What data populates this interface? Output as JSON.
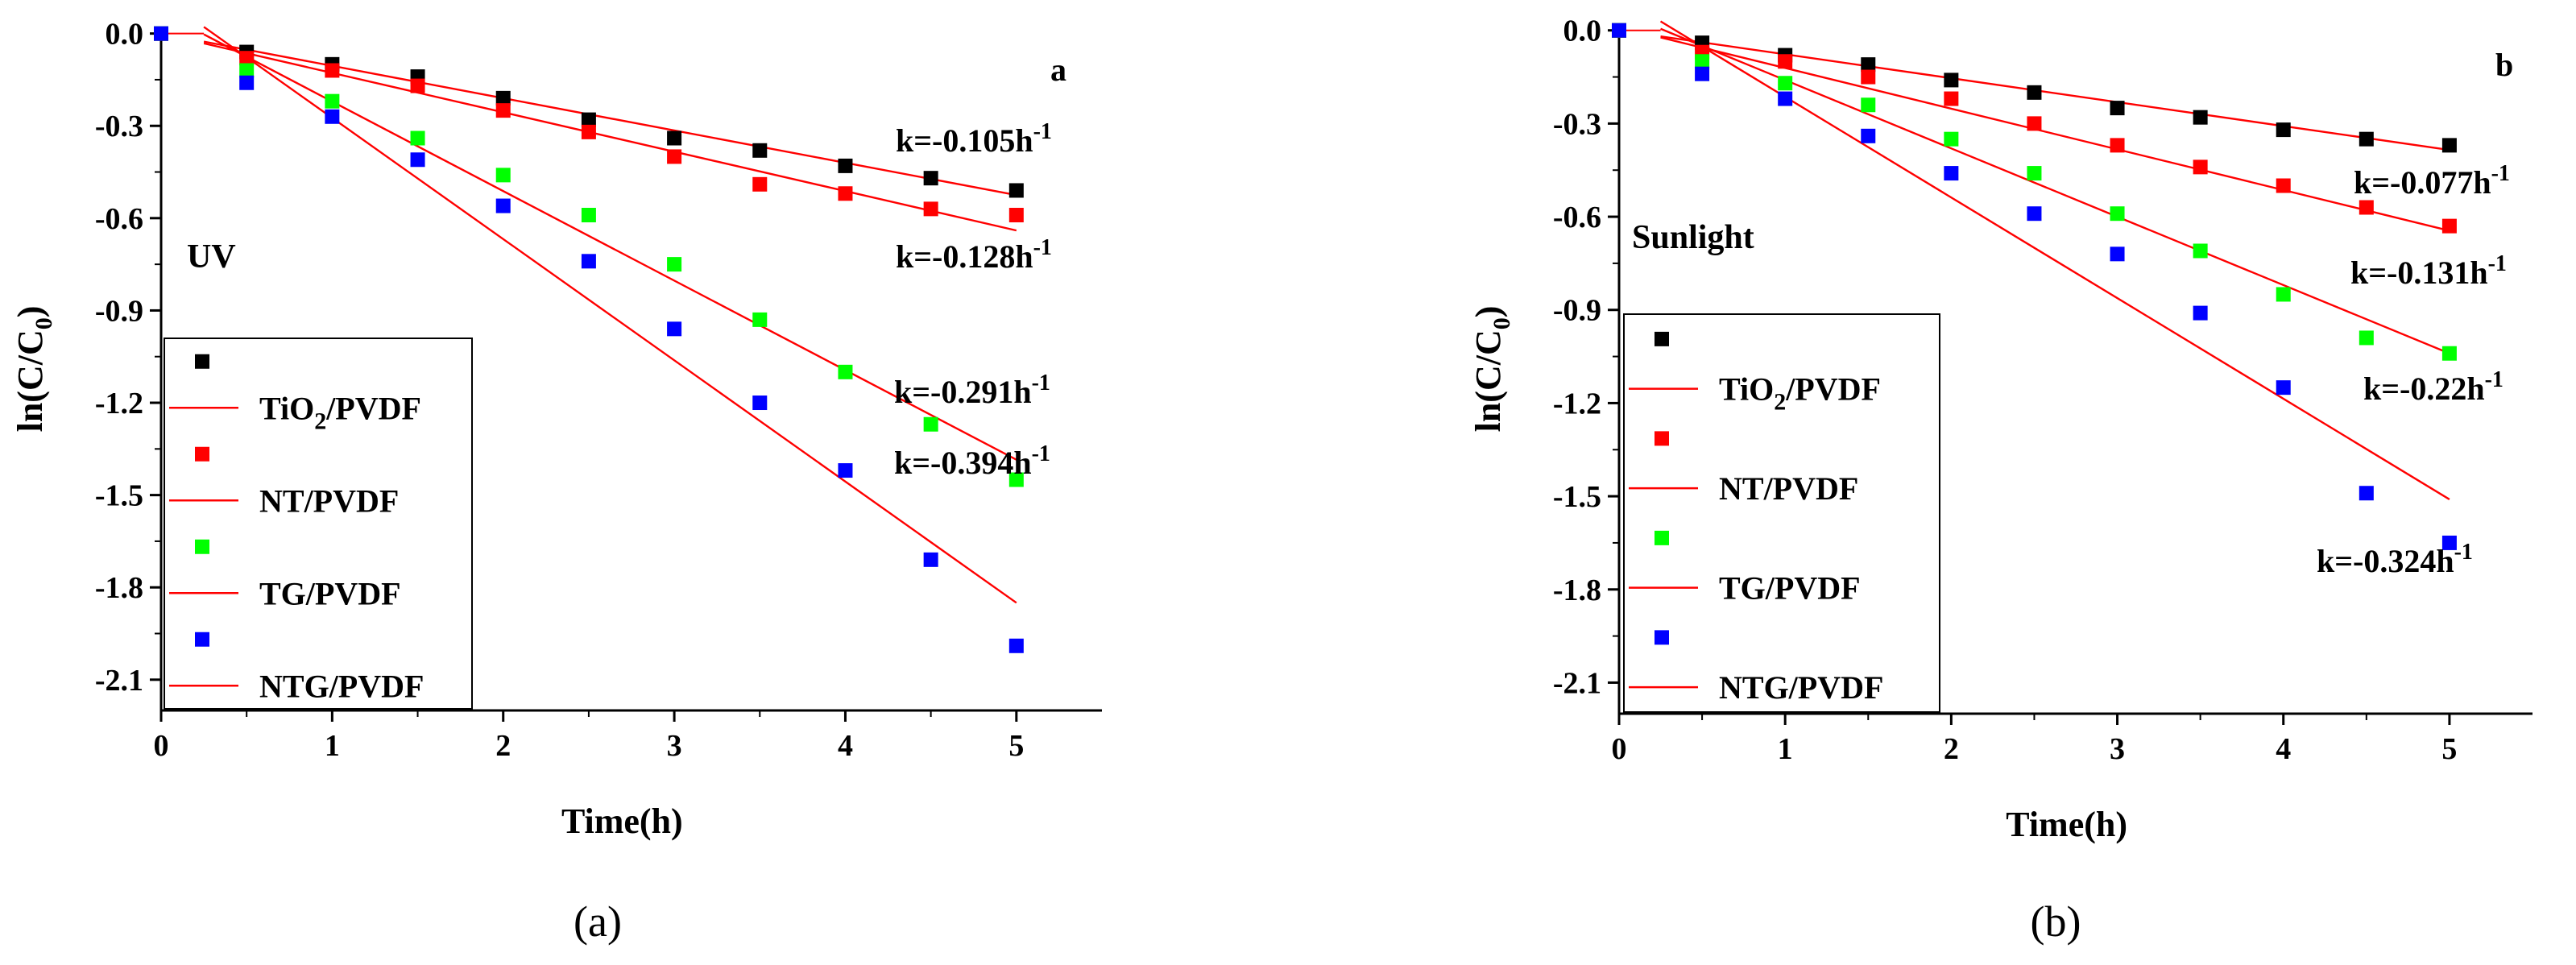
{
  "chart_data": [
    {
      "type": "scatter",
      "panel": "a",
      "caption": "(a)",
      "condition_label": "UV",
      "xlabel": "Time(h)",
      "ylabel": "ln(C/C0)",
      "xlim": [
        0,
        5.5
      ],
      "ylim": [
        -2.2,
        0.02
      ],
      "x_ticks": [
        0,
        1,
        2,
        3,
        4,
        5
      ],
      "y_ticks": [
        0.0,
        -0.3,
        -0.6,
        -0.9,
        -1.2,
        -1.5,
        -1.8,
        -2.1
      ],
      "x_tick_labels": [
        "0",
        "1",
        "2",
        "3",
        "4",
        "5"
      ],
      "y_tick_labels": [
        "0.0",
        "-0.3",
        "-0.6",
        "-0.9",
        "-1.2",
        "-1.5",
        "-1.8",
        "-2.1"
      ],
      "legend_position": "bottom-left",
      "x": [
        0,
        0.5,
        1,
        1.5,
        2,
        2.5,
        3,
        3.5,
        4,
        4.5,
        5
      ],
      "series": [
        {
          "name": "TiO2/PVDF",
          "color": "#000000",
          "values": [
            0,
            -0.06,
            -0.1,
            -0.14,
            -0.21,
            -0.28,
            -0.34,
            -0.38,
            -0.43,
            -0.47,
            -0.51
          ],
          "fit": {
            "slope": -0.105,
            "intercept": 0.0,
            "x_start": 0.25,
            "x_end": 5
          }
        },
        {
          "name": "NT/PVDF",
          "color": "#ff0000",
          "values": [
            0,
            -0.08,
            -0.12,
            -0.17,
            -0.25,
            -0.32,
            -0.4,
            -0.49,
            -0.52,
            -0.57,
            -0.59
          ],
          "fit": {
            "slope": -0.128,
            "intercept": 0.0,
            "x_start": 0.25,
            "x_end": 5
          }
        },
        {
          "name": "TG/PVDF",
          "color": "#00ff00",
          "values": [
            0,
            -0.12,
            -0.22,
            -0.34,
            -0.46,
            -0.59,
            -0.75,
            -0.93,
            -1.1,
            -1.27,
            -1.45
          ],
          "fit": {
            "slope": -0.291,
            "intercept": 0.07,
            "x_start": 0.25,
            "x_end": 5
          }
        },
        {
          "name": "NTG/PVDF",
          "color": "#0000ff",
          "values": [
            0,
            -0.16,
            -0.27,
            -0.41,
            -0.56,
            -0.74,
            -0.96,
            -1.2,
            -1.42,
            -1.71,
            -1.99
          ],
          "fit": {
            "slope": -0.394,
            "intercept": 0.12,
            "x_start": 0.25,
            "x_end": 5
          }
        }
      ],
      "legend": [
        {
          "base": "TiO",
          "sub": "2",
          "rest": "/PVDF"
        },
        {
          "base": "NT/PVDF",
          "sub": "",
          "rest": ""
        },
        {
          "base": "TG/PVDF",
          "sub": "",
          "rest": ""
        },
        {
          "base": "NTG/PVDF",
          "sub": "",
          "rest": ""
        }
      ],
      "annotations": [
        {
          "text": "k=-0.105h",
          "sup": "-1",
          "near_series": 0
        },
        {
          "text": "k=-0.128h",
          "sup": "-1",
          "near_series": 1
        },
        {
          "text": "k=-0.291h",
          "sup": "-1",
          "near_series": 2
        },
        {
          "text": "k=-0.394h",
          "sup": "-1",
          "near_series": 3
        }
      ]
    },
    {
      "type": "scatter",
      "panel": "b",
      "caption": "(b)",
      "condition_label": "Sunlight",
      "xlabel": "Time(h)",
      "ylabel": "ln(C/C0)",
      "xlim": [
        0,
        5.5
      ],
      "ylim": [
        -2.2,
        0.02
      ],
      "x_ticks": [
        0,
        1,
        2,
        3,
        4,
        5
      ],
      "y_ticks": [
        0.0,
        -0.3,
        -0.6,
        -0.9,
        -1.2,
        -1.5,
        -1.8,
        -2.1
      ],
      "x_tick_labels": [
        "0",
        "1",
        "2",
        "3",
        "4",
        "5"
      ],
      "y_tick_labels": [
        "0.0",
        "-0.3",
        "-0.6",
        "-0.9",
        "-1.2",
        "-1.5",
        "-1.8",
        "-2.1"
      ],
      "legend_position": "bottom-left",
      "x": [
        0,
        0.5,
        1,
        1.5,
        2,
        2.5,
        3,
        3.5,
        4,
        4.5,
        5
      ],
      "series": [
        {
          "name": "TiO2/PVDF",
          "color": "#000000",
          "values": [
            0,
            -0.04,
            -0.08,
            -0.11,
            -0.16,
            -0.2,
            -0.25,
            -0.28,
            -0.32,
            -0.35,
            -0.37
          ],
          "fit": {
            "slope": -0.077,
            "intercept": 0.0,
            "x_start": 0.25,
            "x_end": 5
          }
        },
        {
          "name": "NT/PVDF",
          "color": "#ff0000",
          "values": [
            0,
            -0.07,
            -0.1,
            -0.15,
            -0.22,
            -0.3,
            -0.37,
            -0.44,
            -0.5,
            -0.57,
            -0.63
          ],
          "fit": {
            "slope": -0.131,
            "intercept": 0.01,
            "x_start": 0.25,
            "x_end": 5
          }
        },
        {
          "name": "TG/PVDF",
          "color": "#00ff00",
          "values": [
            0,
            -0.1,
            -0.17,
            -0.24,
            -0.35,
            -0.46,
            -0.59,
            -0.71,
            -0.85,
            -0.99,
            -1.04
          ],
          "fit": {
            "slope": -0.22,
            "intercept": 0.06,
            "x_start": 0.25,
            "x_end": 5
          }
        },
        {
          "name": "NTG/PVDF",
          "color": "#0000ff",
          "values": [
            0,
            -0.14,
            -0.22,
            -0.34,
            -0.46,
            -0.59,
            -0.72,
            -0.91,
            -1.15,
            -1.49,
            -1.65
          ],
          "fit": {
            "slope": -0.324,
            "intercept": 0.11,
            "x_start": 0.25,
            "x_end": 5
          }
        }
      ],
      "legend": [
        {
          "base": "TiO",
          "sub": "2",
          "rest": "/PVDF"
        },
        {
          "base": "NT/PVDF",
          "sub": "",
          "rest": ""
        },
        {
          "base": "TG/PVDF",
          "sub": "",
          "rest": ""
        },
        {
          "base": "NTG/PVDF",
          "sub": "",
          "rest": ""
        }
      ],
      "annotations": [
        {
          "text": "k=-0.077h",
          "sup": "-1",
          "near_series": 0
        },
        {
          "text": "k=-0.131h",
          "sup": "-1",
          "near_series": 1
        },
        {
          "text": "k=-0.22h",
          "sup": "-1",
          "near_series": 2
        },
        {
          "text": "k=-0.324h",
          "sup": "-1",
          "near_series": 3
        }
      ]
    }
  ],
  "fit_line_color": "#ff0000",
  "ylabel_parts": {
    "base": "ln(C/C",
    "sub": "0",
    "rest": ")"
  }
}
